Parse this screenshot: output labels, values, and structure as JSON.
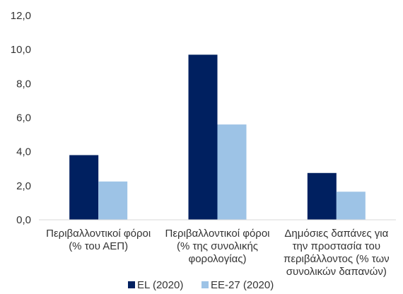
{
  "chart_data": {
    "type": "bar",
    "title": "",
    "xlabel": "",
    "ylabel": "",
    "categories": [
      [
        "Περιβαλλοντικοί φόροι",
        "(% του ΑΕΠ)"
      ],
      [
        "Περιβαλλοντικοί φόροι",
        "(% της συνολικής",
        "φορολογίας)"
      ],
      [
        "Δημόσιες δαπάνες για",
        "την προστασία του",
        "περιβάλλοντος (% των",
        "συνολικών δαπανών)"
      ]
    ],
    "series": [
      {
        "name": "EL (2020)",
        "color": "#002060",
        "values": [
          3.8,
          9.7,
          2.75
        ]
      },
      {
        "name": "ΕΕ-27 (2020)",
        "color": "#9DC3E6",
        "values": [
          2.25,
          5.6,
          1.65
        ]
      }
    ],
    "ylim": [
      0,
      12
    ],
    "yticks": [
      "0,0",
      "2,0",
      "4,0",
      "6,0",
      "8,0",
      "10,0",
      "12,0"
    ],
    "grid": false,
    "legend_position": "bottom-center"
  }
}
